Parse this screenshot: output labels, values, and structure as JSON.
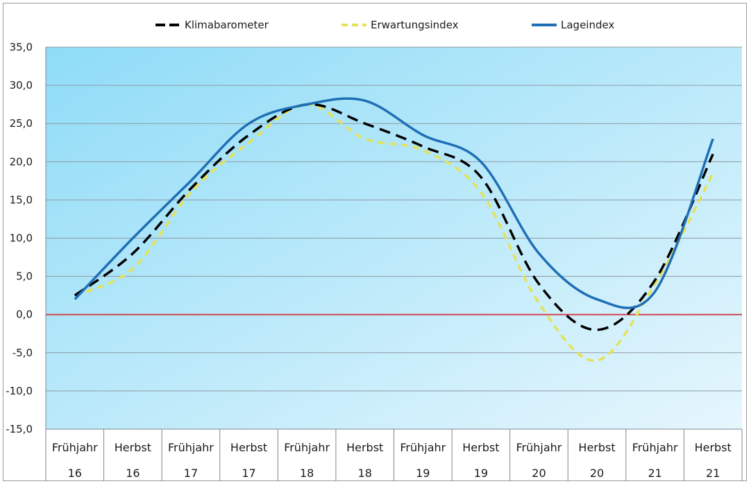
{
  "chart_data": {
    "type": "line",
    "title": "",
    "xlabel": "",
    "ylabel": "",
    "ylim": [
      -15,
      35
    ],
    "y_ticks": [
      "35,0",
      "30,0",
      "25,0",
      "20,0",
      "15,0",
      "10,0",
      "5,0",
      "0,0",
      "-5,0",
      "-10,0",
      "-15,0"
    ],
    "y_tick_values": [
      35,
      30,
      25,
      20,
      15,
      10,
      5,
      0,
      -5,
      -10,
      -15
    ],
    "categories": [
      {
        "season": "Frühjahr",
        "year": "16"
      },
      {
        "season": "Herbst",
        "year": "16"
      },
      {
        "season": "Frühjahr",
        "year": "17"
      },
      {
        "season": "Herbst",
        "year": "17"
      },
      {
        "season": "Frühjahr",
        "year": "18"
      },
      {
        "season": "Herbst",
        "year": "18"
      },
      {
        "season": "Frühjahr",
        "year": "19"
      },
      {
        "season": "Herbst",
        "year": "19"
      },
      {
        "season": "Frühjahr",
        "year": "20"
      },
      {
        "season": "Herbst",
        "year": "20"
      },
      {
        "season": "Frühjahr",
        "year": "21"
      },
      {
        "season": "Herbst",
        "year": "21"
      }
    ],
    "series": [
      {
        "name": "Klimabarometer",
        "color": "#000000",
        "style": "dashed",
        "values": [
          2.5,
          8.0,
          16.5,
          23.5,
          27.5,
          25.0,
          22.0,
          18.0,
          4.0,
          -2.0,
          4.5,
          21.0
        ]
      },
      {
        "name": "Erwartungsindex",
        "color": "#e4e25a",
        "style": "dashed",
        "values": [
          2.5,
          6.0,
          16.0,
          22.5,
          27.5,
          23.0,
          21.5,
          16.0,
          1.5,
          -6.0,
          4.0,
          18.5
        ]
      },
      {
        "name": "Lageindex",
        "color": "#1f6fb5",
        "style": "solid",
        "values": [
          2.0,
          10.0,
          17.5,
          25.0,
          27.5,
          28.0,
          23.5,
          20.0,
          8.0,
          2.0,
          3.0,
          23.0
        ]
      }
    ],
    "reference_line": {
      "value": 0,
      "color": "#d0454f"
    },
    "grid": true,
    "legend": "top-center",
    "background_gradient": [
      "#8fdcf7",
      "#e6f6fd"
    ]
  }
}
